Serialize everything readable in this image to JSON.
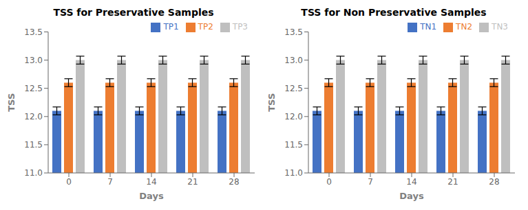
{
  "chart_data": [
    {
      "type": "bar",
      "title": "TSS for Preservative Samples",
      "xlabel": "Days",
      "ylabel": "TSS",
      "categories": [
        "0",
        "7",
        "14",
        "21",
        "28"
      ],
      "series": [
        {
          "name": "TP1",
          "color": "#4472C4",
          "values": [
            12.1,
            12.1,
            12.1,
            12.1,
            12.1
          ],
          "errors": [
            0.07,
            0.07,
            0.07,
            0.07,
            0.07
          ]
        },
        {
          "name": "TP2",
          "color": "#ED7D31",
          "values": [
            12.6,
            12.6,
            12.6,
            12.6,
            12.6
          ],
          "errors": [
            0.07,
            0.07,
            0.07,
            0.07,
            0.07
          ]
        },
        {
          "name": "TP3",
          "color": "#BFBFBF",
          "values": [
            13.0,
            13.0,
            13.0,
            13.0,
            13.0
          ],
          "errors": [
            0.07,
            0.07,
            0.07,
            0.07,
            0.07
          ]
        }
      ],
      "ylim": [
        11,
        13.5
      ],
      "yticks": [
        {
          "value": 11,
          "label": "11.0"
        },
        11.5,
        {
          "value": 12,
          "label": "12.0"
        },
        12.5,
        {
          "value": 13,
          "label": "13.0"
        },
        13.5
      ],
      "grid": false,
      "legend": "upper right"
    },
    {
      "type": "bar",
      "title": "TSS for Non Preservative Samples",
      "xlabel": "Days",
      "ylabel": "TSS",
      "categories": [
        "0",
        "7",
        "14",
        "21",
        "28"
      ],
      "series": [
        {
          "name": "TN1",
          "color": "#4472C4",
          "values": [
            12.1,
            12.1,
            12.1,
            12.1,
            12.1
          ],
          "errors": [
            0.07,
            0.07,
            0.07,
            0.07,
            0.07
          ]
        },
        {
          "name": "TN2",
          "color": "#ED7D31",
          "values": [
            12.6,
            12.6,
            12.6,
            12.6,
            12.6
          ],
          "errors": [
            0.07,
            0.07,
            0.07,
            0.07,
            0.07
          ]
        },
        {
          "name": "TN3",
          "color": "#BFBFBF",
          "values": [
            13.0,
            13.0,
            13.0,
            13.0,
            13.0
          ],
          "errors": [
            0.07,
            0.07,
            0.07,
            0.07,
            0.07
          ]
        }
      ],
      "ylim": [
        11,
        13.5
      ],
      "yticks": [
        {
          "value": 11,
          "label": "11.0"
        },
        11.5,
        {
          "value": 12,
          "label": "12.0"
        },
        12.5,
        {
          "value": 13,
          "label": "13.0"
        },
        13.5
      ],
      "grid": false,
      "legend": "upper right"
    }
  ]
}
